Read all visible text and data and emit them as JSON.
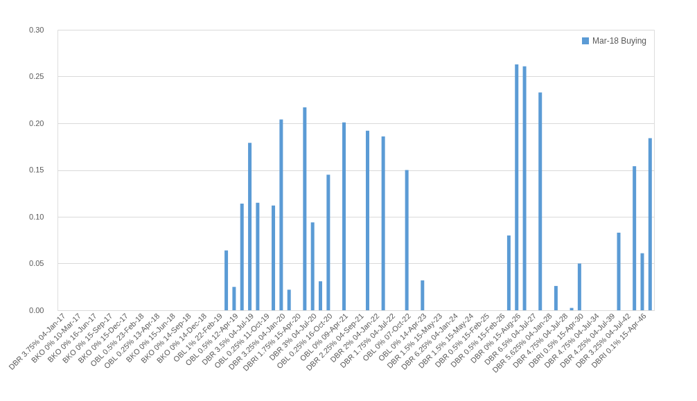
{
  "chart_data": {
    "type": "bar",
    "categories": [
      "DBR 3.75% 04-Jan-17",
      null,
      "BKO 0% 10-Mar-17",
      null,
      "BKO 0% 16-Jun-17",
      null,
      "BKO 0% 15-Sep-17",
      null,
      "BKO 0% 15-Dec-17",
      null,
      "OBL 0.5% 23-Feb-18",
      null,
      "OBL 0.25% 13-Apr-18",
      null,
      "BKO 0% 15-Jun-18",
      null,
      "BKO 0% 14-Sep-18",
      null,
      "BKO 0% 14-Dec-18",
      null,
      "OBL 1% 22-Feb-19",
      null,
      "OBL 0.5% 12-Apr-19",
      null,
      "DBR 3.5% 04-Jul-19",
      null,
      "OBL 0.25% 11-Oct-19",
      null,
      "DBR 3.25% 04-Jan-20",
      null,
      "DBRI 1.75% 15-Apr-20",
      null,
      "DBR 3% 04-Jul-20",
      null,
      "OBL 0.25% 16-Oct-20",
      null,
      "OBL 0% 09-Apr-21",
      null,
      "DBR 2.25% 04-Sep-21",
      null,
      "DBR 2% 04-Jan-22",
      null,
      "DBR 1.75% 04-Jul-22",
      null,
      "OBL 0% 07-Oct-22",
      null,
      "OBL 0% 14-Apr-23",
      null,
      "DBR 1.5% 15-May-23",
      null,
      "DBR 6.25% 04-Jan-24",
      null,
      "DBR 1.5% 15-May-24",
      null,
      "DBR 0.5% 15-Feb-25",
      null,
      "DBR 0.5% 15-Feb-26",
      null,
      "DBR 0% 15-Aug-26",
      null,
      "DBR 6.5% 04-Jul-27",
      null,
      "DBR 5.625% 04-Jan-28",
      null,
      "DBR 4.75% 04-Jul-28",
      null,
      "DBRI 0.5% 15-Apr-30",
      null,
      "DBR 4.75% 04-Jul-34",
      null,
      "DBR 4.25% 04-Jul-39",
      null,
      "DBR 3.25% 04-Jul-42",
      null,
      "DBRI 0.1% 15-Apr-46",
      null
    ],
    "series": [
      {
        "name": "Mar-18 Buying",
        "color": "#5b9bd5",
        "values": [
          null,
          null,
          null,
          null,
          null,
          null,
          null,
          null,
          null,
          null,
          null,
          null,
          null,
          null,
          null,
          null,
          null,
          null,
          null,
          null,
          null,
          0.064,
          0.025,
          0.114,
          0.179,
          0.115,
          null,
          0.112,
          0.204,
          0.022,
          null,
          0.217,
          0.094,
          0.031,
          0.145,
          null,
          0.201,
          null,
          null,
          0.192,
          null,
          0.186,
          null,
          null,
          0.15,
          null,
          0.032,
          null,
          null,
          null,
          null,
          null,
          null,
          null,
          null,
          null,
          null,
          0.08,
          0.263,
          0.261,
          null,
          0.233,
          null,
          0.026,
          null,
          0.0025,
          0.05,
          null,
          null,
          null,
          null,
          0.083,
          null,
          0.154,
          0.061,
          0.184
        ]
      }
    ],
    "ylim": [
      0,
      0.3
    ],
    "yticks": [
      {
        "value": 0,
        "label": "0.00"
      },
      {
        "value": 0.05,
        "label": "0.05"
      },
      {
        "value": 0.1,
        "label": "0.10"
      },
      {
        "value": 0.15,
        "label": "0.15"
      },
      {
        "value": 0.2,
        "label": "0.20"
      },
      {
        "value": 0.25,
        "label": "0.25"
      },
      {
        "value": 0.3,
        "label": "0.30"
      }
    ],
    "grid": "y",
    "legend": "top right"
  }
}
